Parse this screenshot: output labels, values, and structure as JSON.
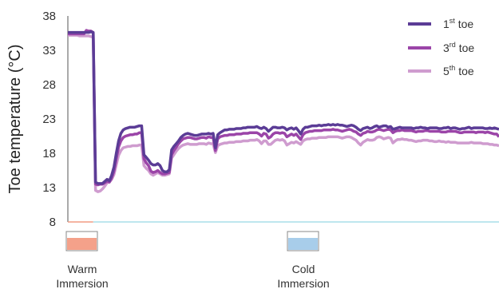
{
  "chart_data": {
    "type": "line",
    "title": "",
    "ylabel": "Toe temperature (°C)",
    "xlabel": "",
    "ylim": [
      8,
      38
    ],
    "yticks": [
      8,
      13,
      18,
      23,
      28,
      33,
      38
    ],
    "x": [
      0,
      1,
      2,
      3,
      4,
      5,
      6,
      7,
      8,
      9,
      10,
      11,
      12,
      13,
      14,
      15,
      16,
      17,
      18,
      19,
      20,
      21,
      22,
      23,
      24,
      25,
      26,
      27,
      28,
      29,
      30,
      31,
      32,
      33,
      34,
      35,
      36,
      37,
      38,
      39,
      40,
      41,
      42,
      43,
      44,
      45,
      46,
      47,
      48,
      49,
      50,
      51,
      52,
      53,
      54,
      55,
      56,
      57,
      58,
      59,
      60,
      61,
      62,
      63,
      64,
      65,
      66,
      67,
      68,
      69,
      70,
      71,
      72,
      73,
      74,
      75,
      76,
      77,
      78,
      79,
      80,
      81,
      82,
      83,
      84,
      85,
      86,
      87,
      88,
      89,
      90,
      91,
      92,
      93,
      94,
      95,
      96,
      97,
      98,
      99,
      100,
      101,
      102,
      103,
      104,
      105,
      106,
      107,
      108,
      109,
      110,
      111,
      112,
      113,
      114,
      115,
      116,
      117,
      118,
      119,
      120,
      121,
      122,
      123,
      124,
      125,
      126,
      127,
      128,
      129,
      130,
      131,
      132,
      133,
      134,
      135,
      136,
      137,
      138,
      139,
      140,
      141,
      142,
      143,
      144,
      145,
      146,
      147,
      148,
      149,
      150,
      151,
      152,
      153,
      154,
      155,
      156,
      157,
      158,
      159,
      160,
      161,
      162,
      163,
      164,
      165,
      166,
      167,
      168,
      169,
      170,
      171,
      172,
      173,
      174,
      175,
      176,
      177,
      178,
      179,
      180,
      181,
      182,
      183,
      184,
      185,
      186,
      187
    ],
    "series": [
      {
        "name": "1st toe",
        "legend_main": "1",
        "legend_sup": "st",
        "legend_suffix": " toe",
        "color": "#5b3c96",
        "values": [
          35.6,
          35.6,
          35.6,
          35.6,
          35.6,
          35.6,
          35.6,
          35.6,
          35.6,
          35.6,
          35.7,
          35.6,
          13.8,
          13.6,
          13.6,
          13.6,
          13.9,
          14.2,
          14.0,
          14.8,
          16.0,
          18.0,
          19.8,
          20.9,
          21.4,
          21.6,
          21.7,
          21.8,
          21.8,
          21.8,
          21.9,
          22.0,
          22.0,
          17.8,
          17.4,
          17.0,
          16.5,
          16.3,
          16.3,
          16.5,
          16.2,
          15.5,
          15.3,
          15.3,
          15.6,
          18.5,
          19.0,
          19.4,
          19.8,
          20.3,
          20.6,
          20.8,
          20.9,
          20.8,
          20.7,
          20.6,
          20.6,
          20.7,
          20.8,
          20.8,
          20.8,
          20.9,
          20.8,
          20.9,
          18.8,
          20.7,
          21.0,
          21.2,
          21.4,
          21.4,
          21.5,
          21.5,
          21.5,
          21.6,
          21.6,
          21.6,
          21.7,
          21.7,
          21.8,
          21.8,
          21.8,
          21.8,
          21.9,
          21.7,
          21.6,
          21.8,
          21.6,
          21.2,
          21.5,
          21.8,
          21.8,
          21.7,
          21.7,
          21.8,
          21.7,
          21.4,
          21.6,
          21.7,
          21.5,
          21.7,
          21.3,
          20.8,
          21.5,
          21.8,
          21.8,
          21.9,
          22.0,
          22.0,
          22.0,
          22.1,
          22.0,
          22.1,
          22.1,
          22.2,
          22.1,
          22.2,
          22.1,
          22.2,
          22.1,
          22.1,
          22.0,
          21.9,
          22.0,
          22.1,
          22.0,
          21.8,
          21.5,
          21.3,
          21.6,
          21.7,
          21.8,
          21.6,
          21.7,
          21.9,
          22.0,
          21.8,
          21.9,
          22.0,
          22.0,
          21.8,
          21.9,
          21.5,
          21.6,
          21.7,
          21.8,
          21.7,
          21.7,
          21.7,
          21.7,
          21.7,
          21.6,
          21.7,
          21.7,
          21.8,
          21.7,
          21.7,
          21.6,
          21.7,
          21.7,
          21.7,
          21.7,
          21.6,
          21.6,
          21.7,
          21.7,
          21.8,
          21.6,
          21.7,
          21.7,
          21.6,
          21.5,
          21.6,
          21.6,
          21.7,
          21.8,
          21.6,
          21.7,
          21.7,
          21.7,
          21.7,
          21.7,
          21.6,
          21.6,
          21.7,
          21.6,
          21.7,
          21.6,
          21.5
        ]
      },
      {
        "name": "3rd toe",
        "legend_main": "3",
        "legend_sup": "rd",
        "legend_suffix": " toe",
        "color": "#9b45a8",
        "values": [
          35.4,
          35.4,
          35.4,
          35.4,
          35.4,
          35.4,
          35.4,
          35.4,
          35.9,
          35.8,
          35.8,
          35.6,
          13.5,
          13.4,
          13.5,
          13.5,
          13.7,
          13.9,
          13.8,
          14.4,
          15.4,
          17.2,
          18.9,
          19.8,
          20.3,
          20.5,
          20.6,
          20.7,
          20.7,
          20.8,
          20.8,
          21.0,
          21.0,
          17.2,
          16.6,
          16.2,
          15.4,
          15.2,
          15.3,
          15.5,
          15.2,
          15.0,
          15.0,
          15.1,
          15.2,
          17.8,
          18.4,
          18.9,
          19.4,
          19.8,
          20.1,
          20.2,
          20.3,
          20.3,
          20.2,
          20.1,
          20.1,
          20.2,
          20.3,
          20.3,
          20.2,
          20.4,
          20.3,
          20.3,
          18.4,
          20.1,
          20.4,
          20.5,
          20.6,
          20.6,
          20.7,
          20.7,
          20.7,
          20.8,
          20.8,
          20.8,
          20.9,
          20.9,
          20.9,
          21.0,
          21.0,
          21.0,
          21.0,
          20.8,
          20.5,
          20.9,
          20.8,
          20.2,
          20.4,
          20.8,
          21.0,
          21.0,
          20.9,
          21.0,
          20.9,
          20.4,
          20.6,
          20.8,
          20.6,
          20.8,
          20.4,
          20.0,
          20.7,
          21.0,
          21.1,
          21.2,
          21.2,
          21.3,
          21.3,
          21.3,
          21.3,
          21.4,
          21.4,
          21.4,
          21.4,
          21.5,
          21.4,
          21.4,
          21.3,
          21.2,
          21.3,
          21.4,
          21.5,
          21.4,
          21.2,
          21.1,
          20.8,
          20.6,
          20.9,
          21.0,
          21.2,
          21.1,
          21.1,
          21.2,
          21.4,
          21.5,
          21.4,
          21.3,
          21.4,
          21.5,
          21.4,
          21.0,
          21.2,
          21.3,
          21.3,
          21.4,
          21.3,
          21.3,
          21.3,
          21.3,
          21.2,
          21.1,
          21.2,
          21.2,
          21.2,
          21.3,
          21.3,
          21.2,
          21.2,
          21.2,
          21.2,
          21.2,
          21.1,
          21.1,
          21.1,
          21.2,
          21.2,
          21.2,
          21.2,
          21.1,
          21.0,
          21.0,
          21.1,
          21.1,
          21.1,
          21.1,
          21.1,
          21.0,
          21.1,
          21.1,
          21.1,
          21.0,
          21.1,
          21.0,
          20.9,
          20.8,
          20.8,
          20.4
        ]
      },
      {
        "name": "5th toe",
        "legend_main": "5",
        "legend_sup": "th",
        "legend_suffix": " toe",
        "color": "#cf9ccf",
        "values": [
          35.2,
          35.2,
          35.2,
          35.2,
          35.2,
          35.1,
          35.1,
          35.1,
          35.1,
          35.1,
          35.0,
          34.9,
          12.6,
          12.4,
          12.5,
          12.8,
          13.2,
          13.7,
          13.8,
          14.2,
          14.9,
          16.3,
          17.7,
          18.4,
          18.8,
          18.9,
          19.0,
          19.0,
          19.1,
          19.1,
          19.1,
          19.2,
          19.2,
          16.2,
          15.8,
          15.5,
          15.0,
          14.8,
          15.0,
          15.2,
          15.0,
          14.8,
          14.8,
          14.9,
          15.0,
          17.3,
          17.8,
          18.3,
          18.7,
          19.0,
          19.2,
          19.3,
          19.4,
          19.3,
          19.3,
          19.3,
          19.3,
          19.4,
          19.4,
          19.4,
          19.3,
          19.5,
          19.4,
          19.4,
          18.1,
          19.1,
          19.3,
          19.4,
          19.5,
          19.5,
          19.6,
          19.6,
          19.6,
          19.7,
          19.7,
          19.7,
          19.8,
          19.8,
          19.8,
          19.9,
          19.9,
          19.9,
          20.0,
          19.8,
          19.4,
          19.8,
          19.8,
          19.3,
          19.3,
          19.6,
          19.9,
          20.0,
          19.9,
          20.0,
          19.8,
          19.2,
          19.4,
          19.6,
          19.5,
          19.7,
          19.5,
          19.3,
          19.8,
          20.0,
          20.1,
          20.1,
          20.2,
          20.2,
          20.2,
          20.3,
          20.3,
          20.3,
          20.3,
          20.4,
          20.4,
          20.4,
          20.4,
          20.4,
          20.3,
          20.2,
          20.3,
          20.4,
          20.4,
          20.3,
          20.1,
          19.9,
          19.5,
          19.2,
          19.6,
          19.8,
          20.0,
          19.9,
          19.9,
          20.0,
          20.3,
          20.4,
          20.3,
          20.1,
          20.2,
          20.3,
          20.2,
          19.5,
          19.8,
          20.0,
          20.0,
          20.1,
          20.0,
          20.0,
          19.9,
          19.9,
          19.8,
          19.7,
          19.8,
          19.8,
          19.9,
          19.9,
          19.9,
          19.8,
          19.8,
          19.7,
          19.7,
          19.8,
          19.7,
          19.7,
          19.6,
          19.7,
          19.6,
          19.6,
          19.6,
          19.5,
          19.5,
          19.5,
          19.5,
          19.5,
          19.5,
          19.6,
          19.5,
          19.5,
          19.5,
          19.5,
          19.4,
          19.4,
          19.4,
          19.3,
          19.3,
          19.2,
          19.2,
          19.1
        ]
      }
    ],
    "legend_position": "top-right",
    "grid": false,
    "phases": [
      {
        "name": "warm",
        "label_line1": "Warm",
        "label_line2": "Immersion",
        "start": 0,
        "end": 11,
        "color": "#f29b82",
        "fill": "#f4a18a"
      },
      {
        "name": "cold",
        "label_line1": "Cold",
        "label_line2": "Immersion",
        "start": 11,
        "end": 187,
        "color": "#a8dfe8",
        "fill": "#a8cdea"
      }
    ]
  }
}
